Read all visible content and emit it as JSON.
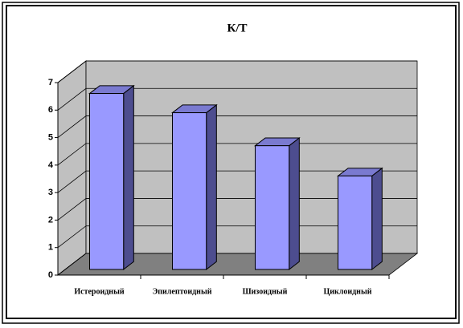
{
  "chart_data": {
    "type": "bar3d",
    "title": "К/Т",
    "categories": [
      "Истероидный",
      "Эпилептоидный",
      "Шизоидный",
      "Циклоидный"
    ],
    "values": [
      6.4,
      5.7,
      4.5,
      3.4
    ],
    "color": "#9999ff",
    "ylim": [
      0,
      7
    ],
    "yticks": [
      0,
      1,
      2,
      3,
      4,
      5,
      6,
      7
    ],
    "grid": true
  }
}
